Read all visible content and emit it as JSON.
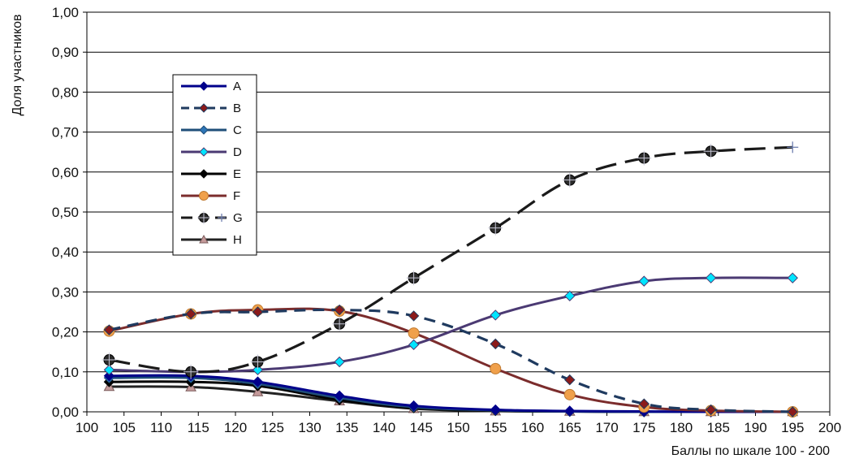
{
  "chart_data": {
    "type": "line",
    "title": "",
    "xlabel": "Баллы по шкале  100 - 200",
    "ylabel": "Доля участников",
    "xlim": [
      100,
      200
    ],
    "ylim": [
      0,
      1
    ],
    "x_ticks": [
      "100",
      "105",
      "110",
      "115",
      "120",
      "125",
      "130",
      "135",
      "140",
      "145",
      "150",
      "155",
      "160",
      "165",
      "170",
      "175",
      "180",
      "185",
      "190",
      "195",
      "200"
    ],
    "y_ticks": [
      "0,00",
      "0,10",
      "0,20",
      "0,30",
      "0,40",
      "0,50",
      "0,60",
      "0,70",
      "0,80",
      "0,90",
      "1,00"
    ],
    "grid": "horizontal",
    "legend_position": "left",
    "x": [
      103,
      114,
      123,
      134,
      144,
      155,
      165,
      175,
      184,
      195
    ],
    "series": [
      {
        "name": "A",
        "values": [
          0.09,
          0.09,
          0.075,
          0.04,
          0.015,
          0.005,
          0.002,
          0.001,
          0.0,
          0.0
        ],
        "color": "#00008b",
        "marker": "diamond",
        "markerColor": "#00008b",
        "dash": "solid"
      },
      {
        "name": "B",
        "values": [
          0.205,
          0.245,
          0.25,
          0.255,
          0.24,
          0.17,
          0.08,
          0.02,
          0.005,
          0.0
        ],
        "color": "#1f3a5f",
        "marker": "diamond",
        "markerColor": "#8b1a1a",
        "dash": "dashed"
      },
      {
        "name": "C",
        "values": [
          0.085,
          0.085,
          0.07,
          0.035,
          0.012,
          0.004,
          0.001,
          0.0,
          0.0,
          0.0
        ],
        "color": "#1f4e79",
        "marker": "diamond",
        "markerColor": "#2e75b6",
        "dash": "solid"
      },
      {
        "name": "D",
        "values": [
          0.105,
          0.1,
          0.105,
          0.125,
          0.168,
          0.242,
          0.29,
          0.327,
          0.335,
          0.335
        ],
        "color": "#4b3a73",
        "marker": "diamond",
        "markerColor": "#00e5ff",
        "dash": "solid"
      },
      {
        "name": "E",
        "values": [
          0.075,
          0.075,
          0.065,
          0.03,
          0.01,
          0.003,
          0.001,
          0.0,
          0.0,
          0.0
        ],
        "color": "#000000",
        "marker": "diamond",
        "markerColor": "#000000",
        "dash": "solid"
      },
      {
        "name": "F",
        "values": [
          0.202,
          0.245,
          0.255,
          0.252,
          0.197,
          0.108,
          0.043,
          0.012,
          0.003,
          0.0
        ],
        "color": "#7b2c2c",
        "marker": "circle",
        "markerColor": "#f0a04b",
        "dash": "solid"
      },
      {
        "name": "G",
        "values": [
          0.13,
          0.1,
          0.125,
          0.22,
          0.335,
          0.46,
          0.58,
          0.635,
          0.652,
          0.662
        ],
        "color": "#1a1a1a",
        "marker": "crosscircle",
        "markerColor": "#2a2a2a",
        "dash": "longdash"
      },
      {
        "name": "H",
        "values": [
          0.063,
          0.062,
          0.05,
          0.027,
          0.008,
          0.002,
          0.001,
          0.0,
          0.0,
          0.0
        ],
        "color": "#222222",
        "marker": "triangle",
        "markerColor": "#c49a9a",
        "dash": "solid"
      }
    ]
  }
}
